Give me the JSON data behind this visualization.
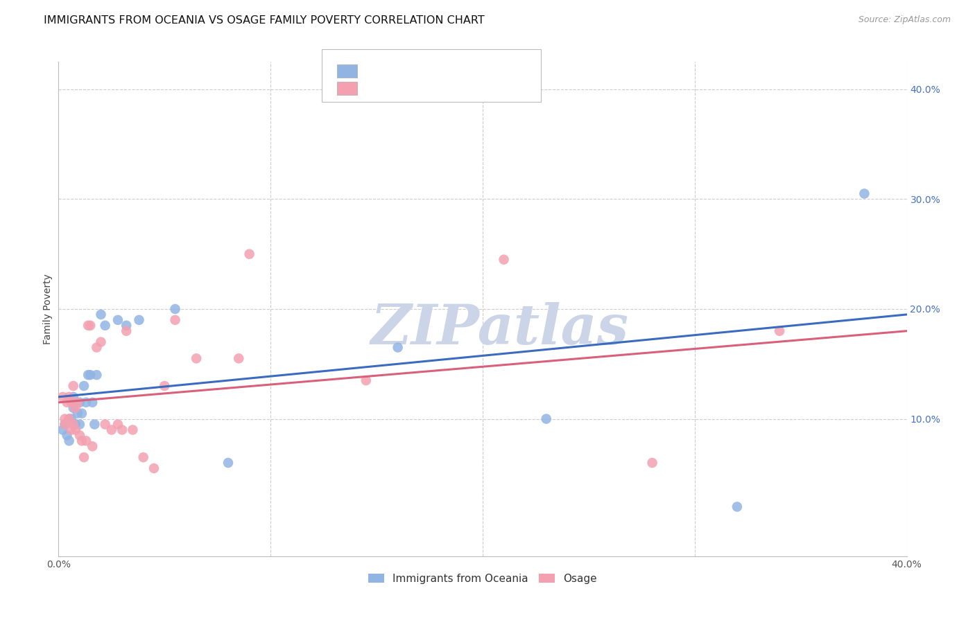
{
  "title": "IMMIGRANTS FROM OCEANIA VS OSAGE FAMILY POVERTY CORRELATION CHART",
  "source": "Source: ZipAtlas.com",
  "ylabel": "Family Poverty",
  "xlim": [
    0.0,
    0.4
  ],
  "ylim": [
    -0.025,
    0.425
  ],
  "y_ticks": [
    0.1,
    0.2,
    0.3,
    0.4
  ],
  "y_tick_labels": [
    "10.0%",
    "20.0%",
    "30.0%",
    "40.0%"
  ],
  "watermark": "ZIPatlas",
  "legend_label_blue": "Immigrants from Oceania",
  "legend_label_pink": "Osage",
  "blue_color": "#92b4e3",
  "pink_color": "#f4a0b0",
  "line_blue": "#3a6bbf",
  "line_pink": "#d9607a",
  "blue_x": [
    0.002,
    0.003,
    0.004,
    0.005,
    0.005,
    0.006,
    0.007,
    0.007,
    0.008,
    0.009,
    0.01,
    0.01,
    0.011,
    0.012,
    0.013,
    0.014,
    0.015,
    0.016,
    0.017,
    0.018,
    0.02,
    0.022,
    0.028,
    0.032,
    0.038,
    0.055,
    0.08,
    0.16,
    0.23,
    0.32,
    0.38
  ],
  "blue_y": [
    0.09,
    0.095,
    0.085,
    0.08,
    0.1,
    0.1,
    0.11,
    0.12,
    0.095,
    0.105,
    0.115,
    0.095,
    0.105,
    0.13,
    0.115,
    0.14,
    0.14,
    0.115,
    0.095,
    0.14,
    0.195,
    0.185,
    0.19,
    0.185,
    0.19,
    0.2,
    0.06,
    0.165,
    0.1,
    0.02,
    0.305
  ],
  "pink_x": [
    0.002,
    0.003,
    0.003,
    0.004,
    0.005,
    0.005,
    0.006,
    0.006,
    0.007,
    0.007,
    0.008,
    0.008,
    0.009,
    0.01,
    0.011,
    0.012,
    0.013,
    0.014,
    0.015,
    0.016,
    0.018,
    0.02,
    0.022,
    0.025,
    0.028,
    0.03,
    0.032,
    0.035,
    0.04,
    0.045,
    0.05,
    0.055,
    0.065,
    0.085,
    0.09,
    0.145,
    0.21,
    0.28,
    0.34
  ],
  "pink_y": [
    0.12,
    0.095,
    0.1,
    0.115,
    0.12,
    0.1,
    0.09,
    0.115,
    0.095,
    0.13,
    0.09,
    0.11,
    0.115,
    0.085,
    0.08,
    0.065,
    0.08,
    0.185,
    0.185,
    0.075,
    0.165,
    0.17,
    0.095,
    0.09,
    0.095,
    0.09,
    0.18,
    0.09,
    0.065,
    0.055,
    0.13,
    0.19,
    0.155,
    0.155,
    0.25,
    0.135,
    0.245,
    0.06,
    0.18
  ],
  "grid_color": "#cccccc",
  "background_color": "#ffffff",
  "title_fontsize": 11.5,
  "axis_label_fontsize": 10,
  "tick_fontsize": 10,
  "watermark_color": "#ccd5e8"
}
